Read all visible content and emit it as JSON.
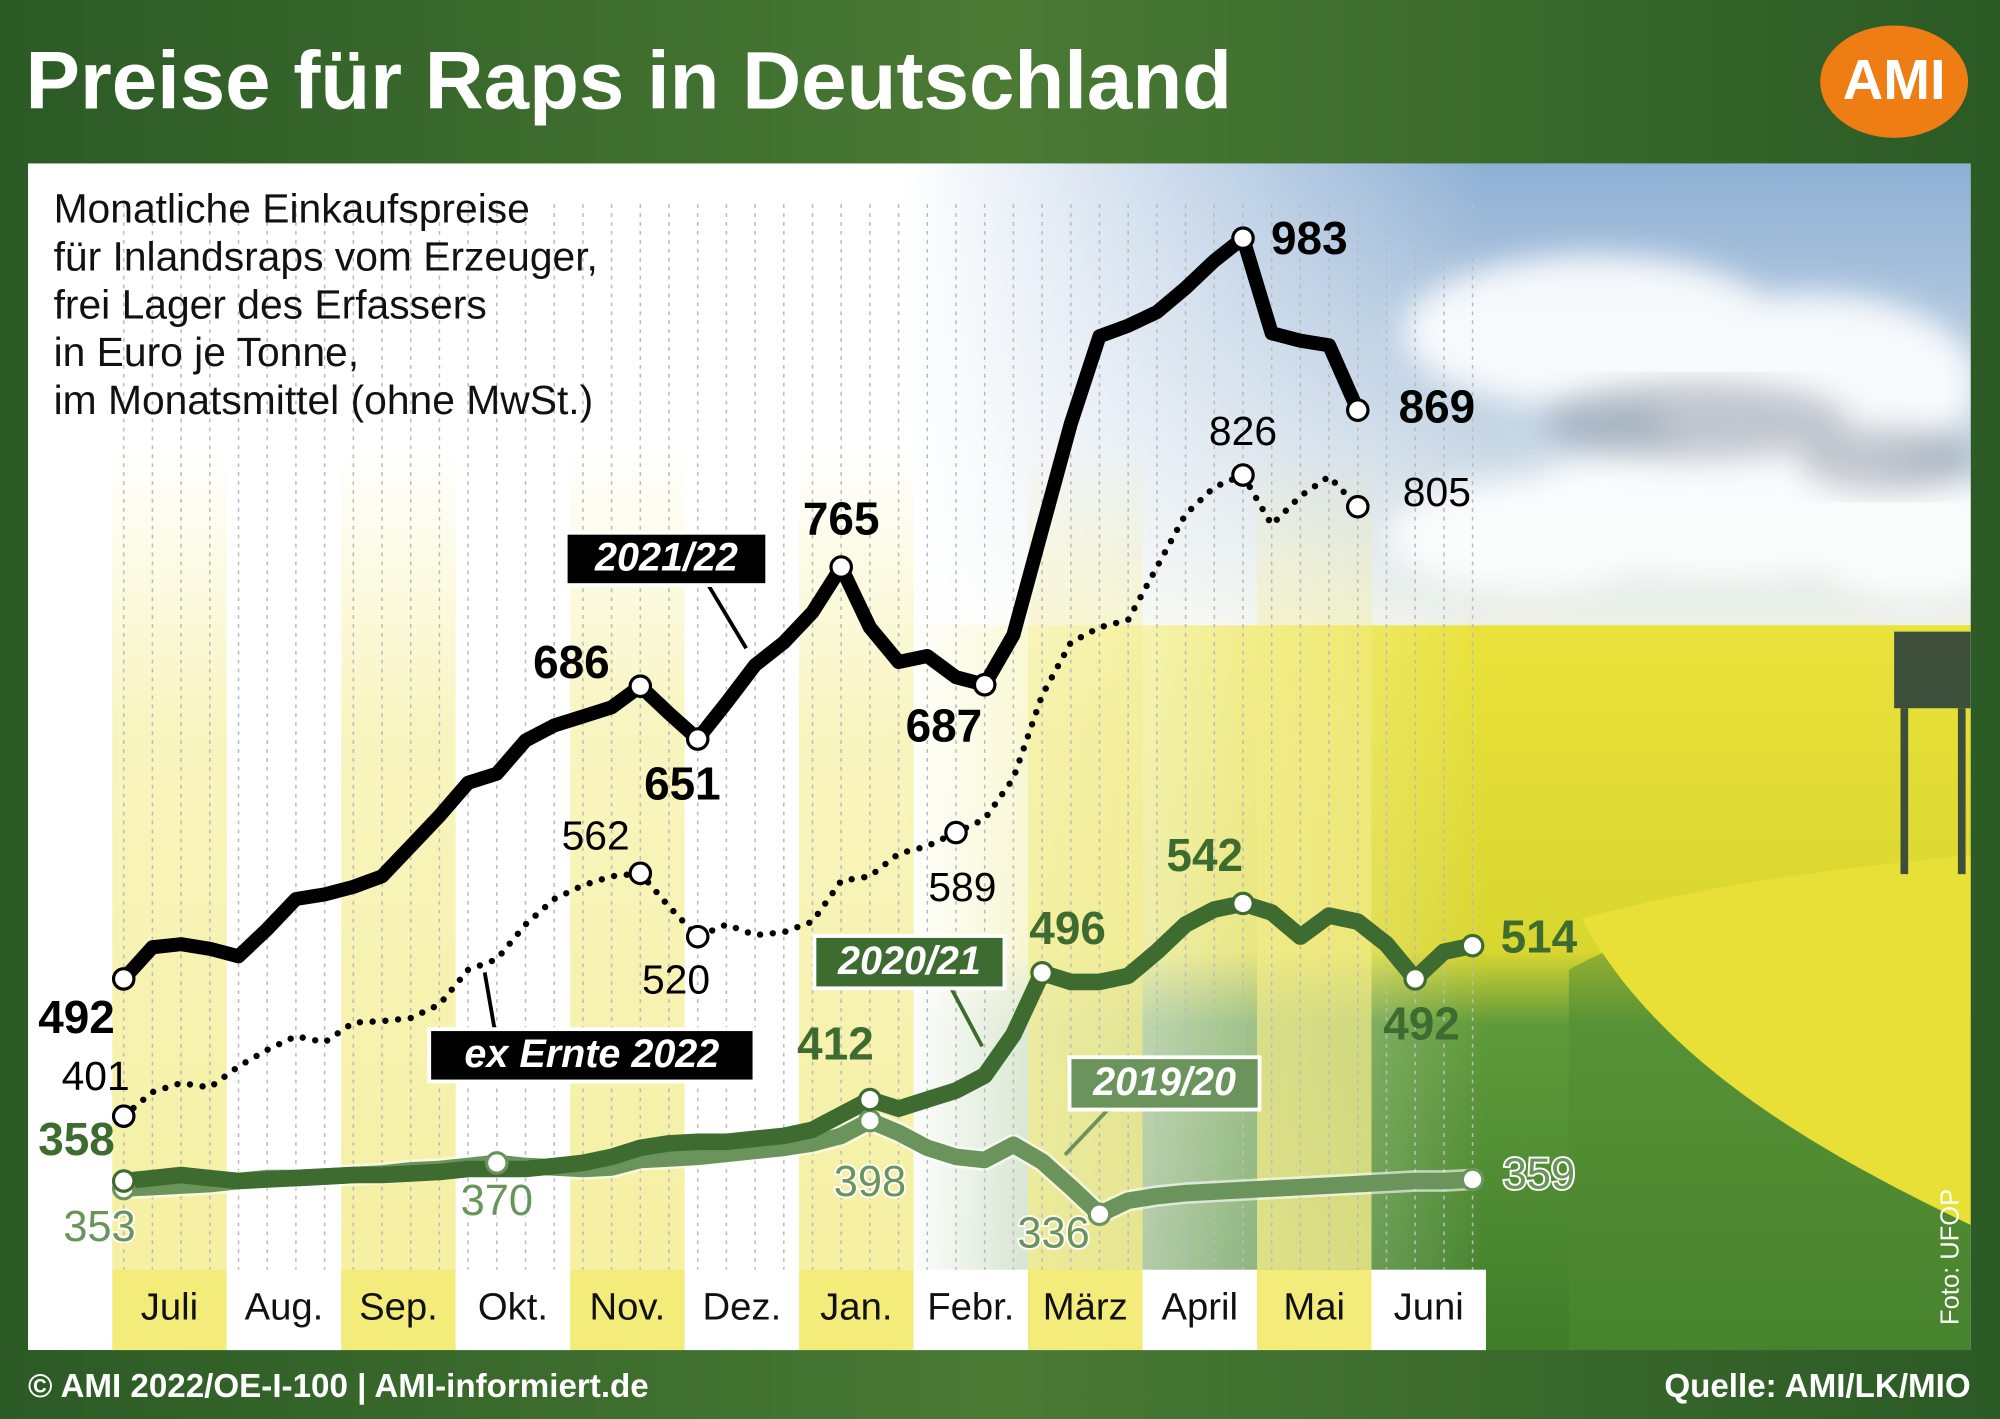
{
  "title": "Preise für Raps in Deutschland",
  "logo": "AMI",
  "footer_left": "© AMI 2022/OE-I-100 | AMI-informiert.de",
  "footer_right": "Quelle: AMI/LK/MIO",
  "photo_credit": "Foto: UFOP",
  "chart_data": {
    "type": "line",
    "subtitle": [
      "Monatliche Einkaufspreise",
      "für Inlandsraps vom Erzeuger,",
      "frei Lager des Erfassers",
      "in Euro je Tonne,",
      "im Monatsmittel (ohne MwSt.)"
    ],
    "categories": [
      null,
      "Juli",
      null,
      null,
      null,
      "Aug.",
      null,
      null,
      null,
      "Sep.",
      null,
      null,
      null,
      "Okt.",
      null,
      null,
      null,
      "Nov.",
      null,
      null,
      null,
      "Dez.",
      null,
      null,
      null,
      "Jan.",
      null,
      null,
      null,
      "Febr.",
      null,
      null,
      null,
      "März",
      null,
      null,
      null,
      "April",
      null,
      null,
      null,
      "Mai",
      null,
      null,
      null,
      "Juni",
      null,
      null
    ],
    "ylim": [
      295,
      1014
    ],
    "series": [
      {
        "name": "2021/22",
        "color": "#000000",
        "line_style": "solid",
        "values": [
          492,
          513,
          515,
          512,
          507,
          525,
          545,
          548,
          553,
          560,
          580,
          600,
          622,
          628,
          650,
          660,
          666,
          672,
          686,
          668,
          651,
          675,
          700,
          715,
          735,
          765,
          725,
          702,
          706,
          692,
          687,
          720,
          790,
          860,
          918,
          925,
          934,
          950,
          968,
          983,
          920,
          915,
          912,
          869,
          null,
          null,
          null,
          null
        ]
      },
      {
        "name": "ex Ernte 2022",
        "color": "#000000",
        "line_style": "dotted",
        "values": [
          401,
          417,
          423,
          420,
          434,
          445,
          454,
          450,
          463,
          464,
          466,
          475,
          498,
          505,
          528,
          545,
          554,
          560,
          562,
          540,
          520,
          528,
          521,
          523,
          530,
          557,
          560,
          575,
          580,
          589,
          598,
          625,
          680,
          715,
          725,
          730,
          765,
          800,
          818,
          826,
          793,
          812,
          825,
          805,
          null,
          null,
          null,
          null
        ]
      },
      {
        "name": "2020/21",
        "color": "#3d6b30",
        "line_style": "solid",
        "values": [
          358,
          360,
          362,
          360,
          358,
          359,
          360,
          361,
          362,
          362,
          363,
          364,
          366,
          366,
          366,
          368,
          370,
          374,
          380,
          383,
          384,
          384,
          386,
          388,
          392,
          402,
          412,
          406,
          412,
          418,
          428,
          455,
          496,
          490,
          490,
          494,
          510,
          528,
          538,
          542,
          536,
          520,
          534,
          530,
          515,
          492,
          510,
          514
        ]
      },
      {
        "name": "2019/20",
        "color": "#6b945c",
        "line_style": "solid",
        "values": [
          353,
          354,
          355,
          356,
          358,
          360,
          360,
          361,
          362,
          363,
          365,
          366,
          368,
          370,
          368,
          367,
          366,
          367,
          372,
          373,
          374,
          376,
          378,
          380,
          383,
          388,
          398,
          390,
          380,
          374,
          372,
          382,
          371,
          354,
          336,
          345,
          348,
          350,
          351,
          352,
          353,
          354,
          355,
          356,
          357,
          358,
          358,
          359
        ]
      }
    ]
  }
}
